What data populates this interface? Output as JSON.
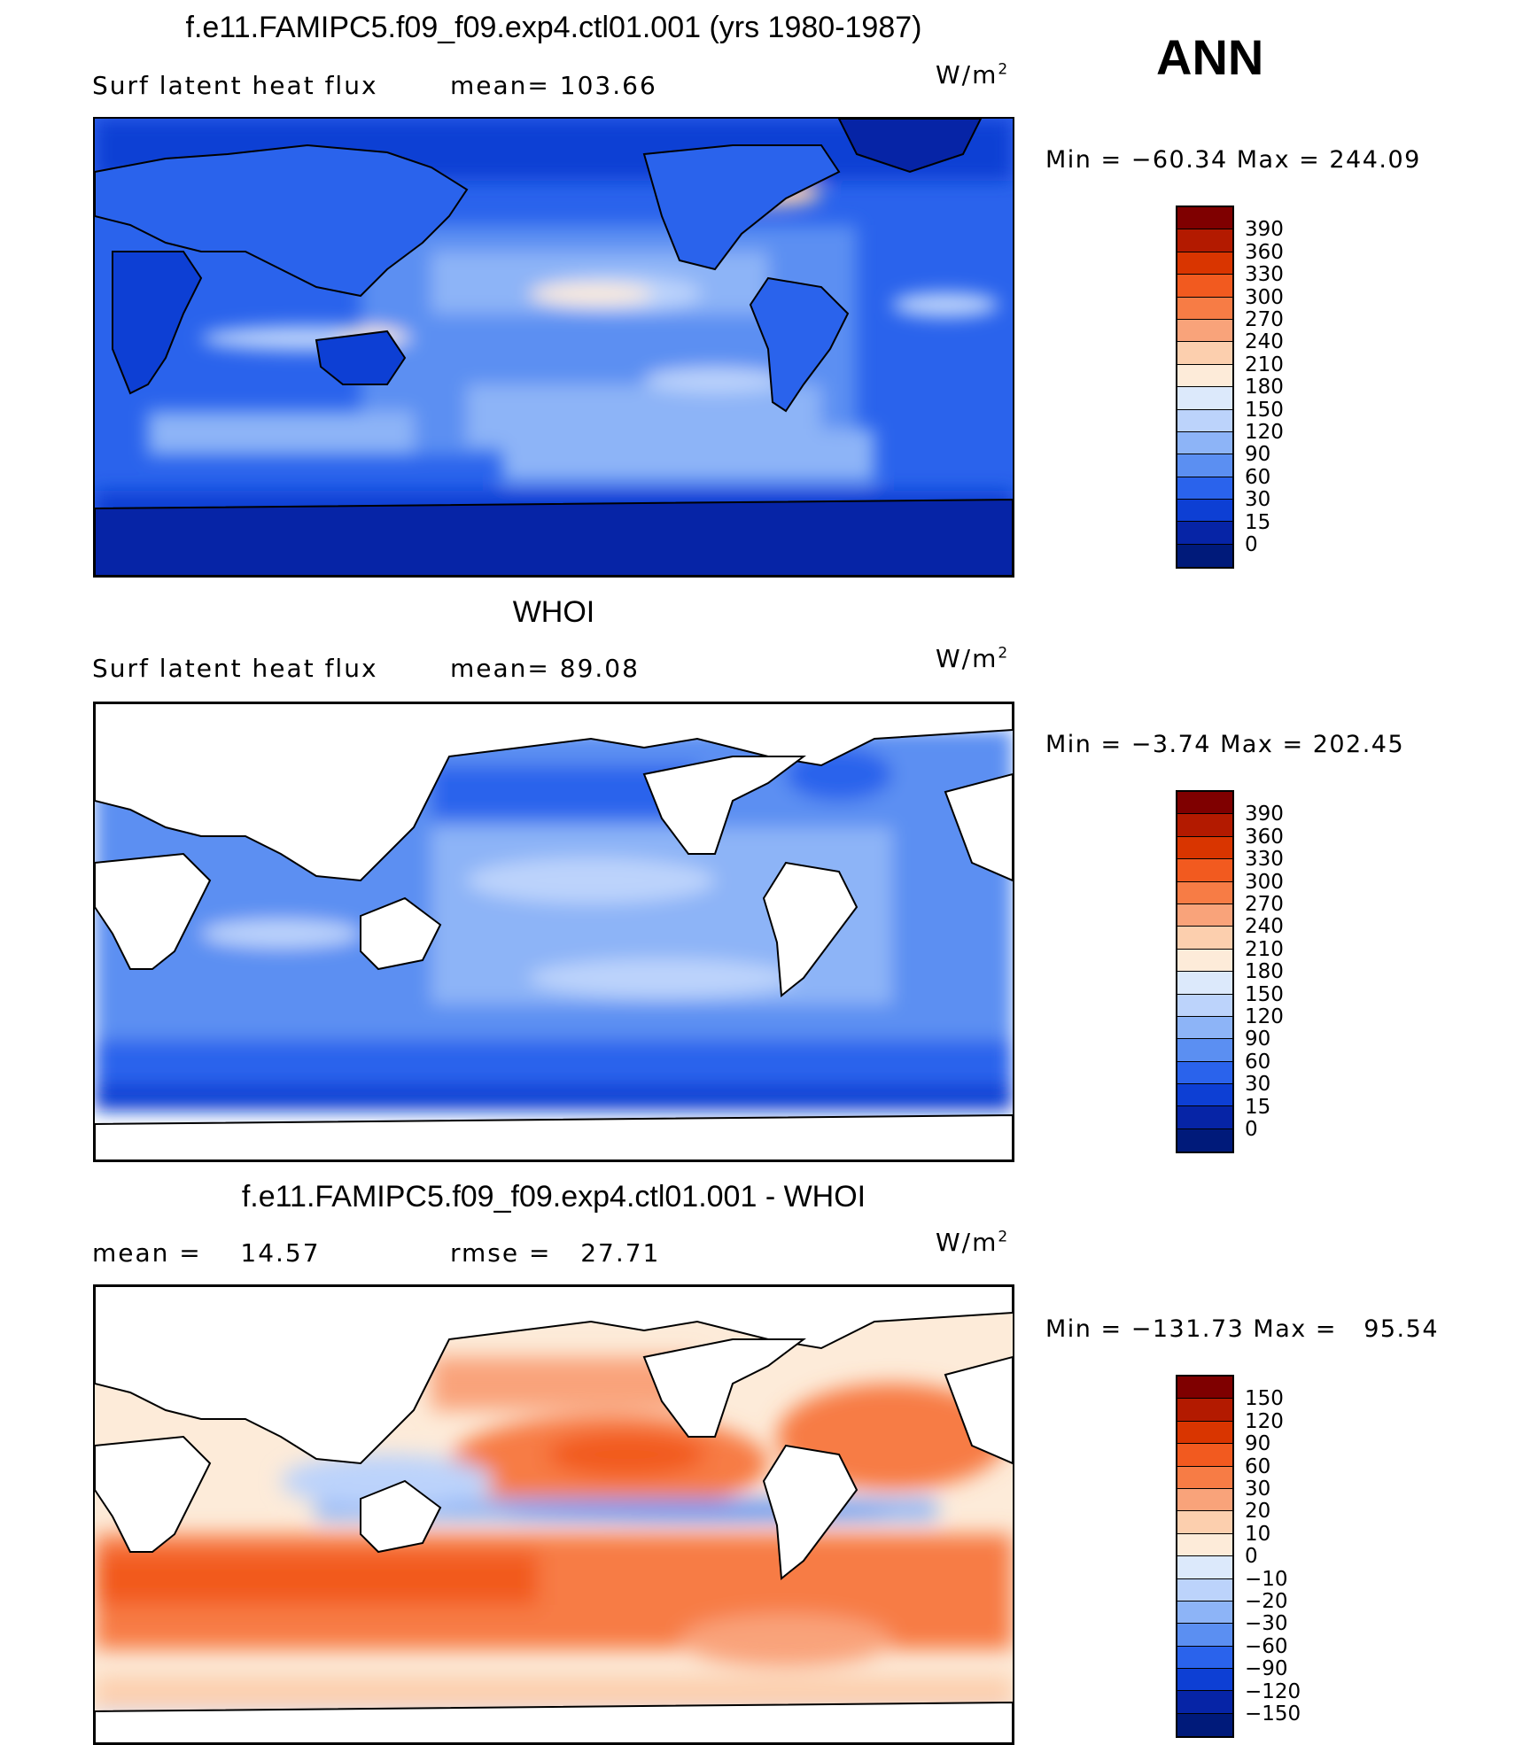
{
  "season": "ANN",
  "units": {
    "base": "W/m",
    "sup": "2"
  },
  "panels": [
    {
      "title": "f.e11.FAMIPC5.f09_f09.exp4.ctl01.001 (yrs 1980-1987)",
      "left_text": "Surf  latent  heat  flux",
      "right_label": "mean=",
      "right_value": "103.66",
      "min_label": "Min  =",
      "min_value": "−60.34",
      "max_label": "Max  =",
      "max_value": "244.09",
      "colorbar": {
        "labels": [
          "390",
          "360",
          "330",
          "300",
          "270",
          "240",
          "210",
          "180",
          "150",
          "120",
          "90",
          "60",
          "30",
          "15",
          "0"
        ],
        "colors": [
          "#7f0000",
          "#b31a00",
          "#d93500",
          "#f25a1f",
          "#f77c45",
          "#f9a37a",
          "#fccfae",
          "#fdebd9",
          "#dce9fb",
          "#bcd3fb",
          "#8db4f7",
          "#5b8ff2",
          "#2a63ec",
          "#0d3fd4",
          "#0624a6",
          "#001a7a"
        ]
      }
    },
    {
      "title": "WHOI",
      "left_text": "Surf  latent  heat  flux",
      "right_label": "mean=",
      "right_value": "89.08",
      "min_label": "Min  =",
      "min_value": "−3.74",
      "max_label": "Max  =",
      "max_value": "202.45",
      "colorbar": {
        "labels": [
          "390",
          "360",
          "330",
          "300",
          "270",
          "240",
          "210",
          "180",
          "150",
          "120",
          "90",
          "60",
          "30",
          "15",
          "0"
        ],
        "colors": [
          "#7f0000",
          "#b31a00",
          "#d93500",
          "#f25a1f",
          "#f77c45",
          "#f9a37a",
          "#fccfae",
          "#fdebd9",
          "#dce9fb",
          "#bcd3fb",
          "#8db4f7",
          "#5b8ff2",
          "#2a63ec",
          "#0d3fd4",
          "#0624a6",
          "#001a7a"
        ]
      }
    },
    {
      "title": "f.e11.FAMIPC5.f09_f09.exp4.ctl01.001 - WHOI",
      "left_text": "mean  =",
      "left_value": "14.57",
      "right_label": "rmse  =",
      "right_value": "27.71",
      "min_label": "Min  =",
      "min_value": "−131.73",
      "max_label": "Max  =",
      "max_value": "95.54",
      "colorbar": {
        "labels": [
          "150",
          "120",
          "90",
          "60",
          "30",
          "20",
          "10",
          "0",
          "−10",
          "−20",
          "−30",
          "−60",
          "−90",
          "−120",
          "−150"
        ],
        "colors": [
          "#7f0000",
          "#b31a00",
          "#d93500",
          "#f25a1f",
          "#f77c45",
          "#f9a37a",
          "#fccfae",
          "#fdebd9",
          "#dce9fb",
          "#bcd3fb",
          "#8db4f7",
          "#5b8ff2",
          "#2a63ec",
          "#0d3fd4",
          "#0624a6",
          "#001a7a"
        ]
      }
    }
  ]
}
